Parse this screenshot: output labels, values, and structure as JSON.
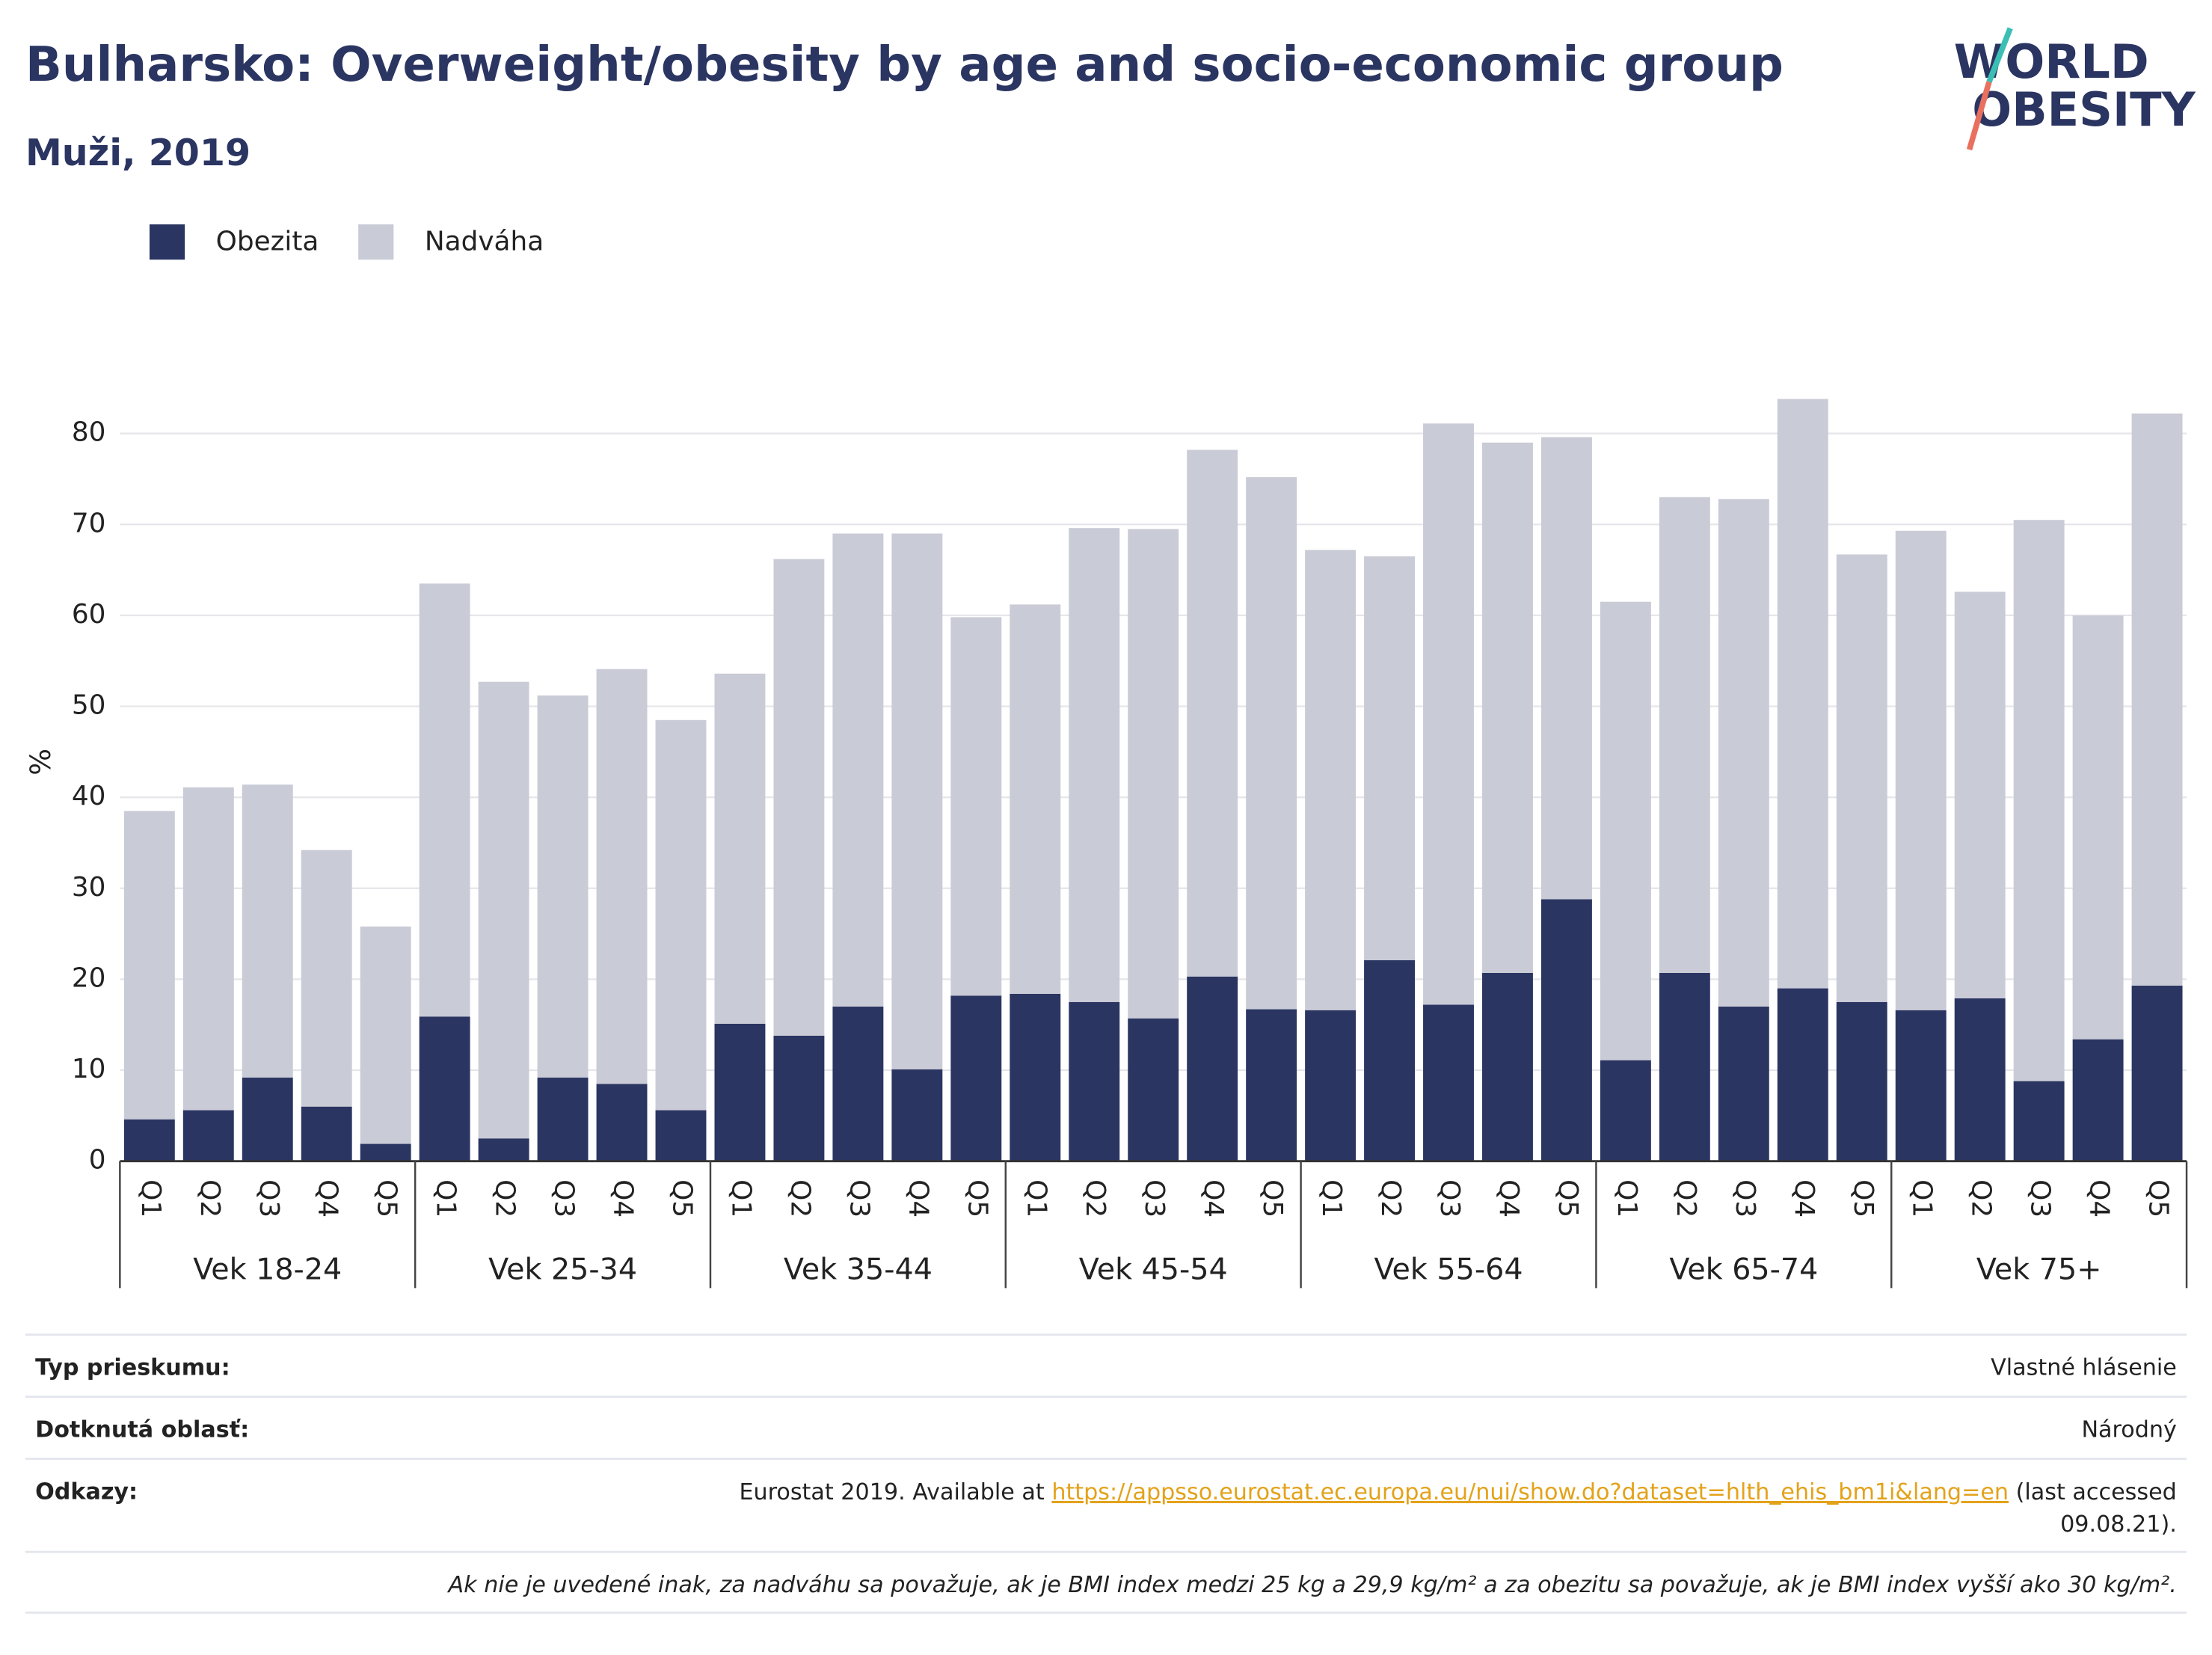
{
  "chart_data": {
    "type": "stacked_bar",
    "title": "Bulharsko: Overweight/obesity by age and socio-economic group",
    "subtitle": "Muži, 2019",
    "y_label": "%",
    "categories": [
      "Q1",
      "Q2",
      "Q3",
      "Q4",
      "Q5",
      "Q1",
      "Q2",
      "Q3",
      "Q4",
      "Q5",
      "Q1",
      "Q2",
      "Q3",
      "Q4",
      "Q5",
      "Q1",
      "Q2",
      "Q3",
      "Q4",
      "Q5",
      "Q1",
      "Q2",
      "Q3",
      "Q4",
      "Q5",
      "Q1",
      "Q2",
      "Q3",
      "Q4",
      "Q5",
      "Q1",
      "Q2",
      "Q3",
      "Q4",
      "Q5"
    ],
    "groups": [
      "Vek 18-24",
      "Vek 25-34",
      "Vek 35-44",
      "Vek 45-54",
      "Vek 55-64",
      "Vek 65-74",
      "Vek 75+"
    ],
    "series": [
      {
        "name": "Obezita",
        "color": "#2b3562",
        "values": [
          4.6,
          5.6,
          9.2,
          6.0,
          1.9,
          15.9,
          2.5,
          9.2,
          8.5,
          5.6,
          15.1,
          13.8,
          17.0,
          10.1,
          18.2,
          18.4,
          17.5,
          15.7,
          20.3,
          16.7,
          16.6,
          22.1,
          17.2,
          20.7,
          28.8,
          11.1,
          20.7,
          17.0,
          19.0,
          17.5,
          16.6,
          17.9,
          8.8,
          13.4,
          19.3
        ]
      },
      {
        "name": "Nadváha",
        "color": "#c9cbd6",
        "values": [
          33.9,
          35.5,
          32.2,
          28.2,
          23.9,
          47.6,
          50.2,
          42.0,
          45.6,
          42.9,
          38.5,
          52.4,
          52.0,
          58.9,
          41.6,
          42.8,
          52.1,
          53.8,
          57.9,
          58.5,
          50.6,
          44.4,
          63.9,
          58.3,
          50.8,
          50.4,
          52.3,
          55.8,
          64.8,
          49.2,
          52.7,
          44.7,
          61.7,
          46.6,
          62.9
        ]
      }
    ],
    "ylim": [
      0,
      85
    ],
    "yticks": [
      0,
      10,
      20,
      30,
      40,
      50,
      60,
      70,
      80
    ],
    "grid": true,
    "legend": "top-left"
  },
  "logo": {
    "line1": "WORLD",
    "line2": "OBESITY"
  },
  "table": {
    "rows": [
      {
        "label": "Typ prieskumu:",
        "value": "Vlastné hlásenie"
      },
      {
        "label": "Dotknutá oblasť:",
        "value": "Národný"
      }
    ],
    "references": {
      "label": "Odkazy:",
      "prefix": "Eurostat 2019. Available at ",
      "link": "https://appsso.eurostat.ec.europa.eu/nui/show.do?dataset=hlth_ehis_bm1i&lang=en",
      "suffix": [
        " (last accessed",
        "09.08.21)."
      ]
    },
    "note": "Ak nie je uvedené inak, za nadváhu sa považuje, ak je BMI index medzi 25 kg a 29,9 kg/m² a za obezitu sa považuje, ak je BMI index vyšší ako 30 kg/m²."
  }
}
